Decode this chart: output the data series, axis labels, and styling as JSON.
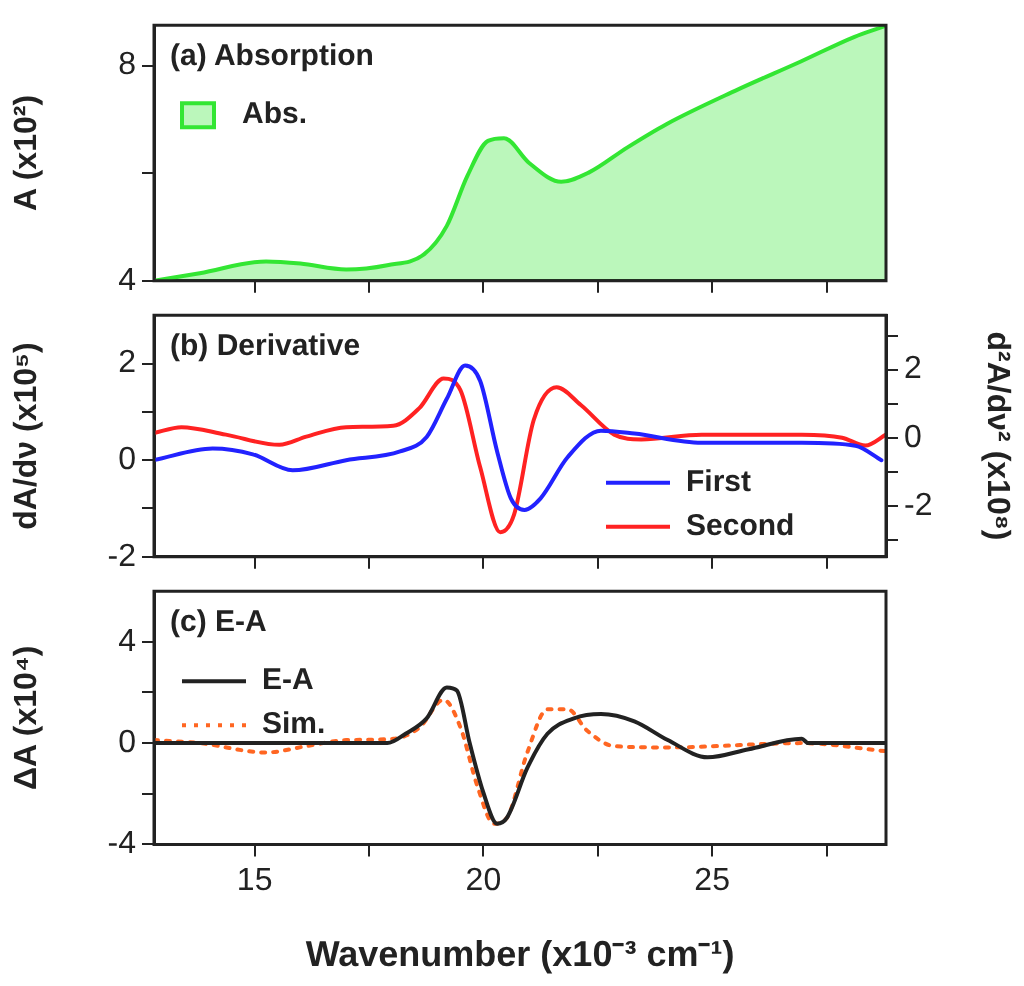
{
  "chart_data": [
    {
      "type": "area",
      "title": "(a) Absorption",
      "ylabel": "A (x10²)",
      "legend": "top left",
      "tick_labels": "y",
      "marker": "none",
      "xlim": [
        12.8,
        28.8
      ],
      "xticks": [
        15,
        {
          "value": 17.5,
          "label": null
        },
        20,
        {
          "value": 22.5,
          "label": null
        },
        25,
        {
          "value": 27.5,
          "label": null
        }
      ],
      "ylim": [
        4,
        8.75
      ],
      "yticks": [
        4,
        {
          "value": 6,
          "label": null
        },
        8
      ],
      "series": [
        {
          "name": "Abs.",
          "color": "#33e633",
          "x": [
            12.8,
            13.8,
            15.25,
            16.0,
            17.0,
            17.9,
            18.7,
            19.2,
            19.65,
            20.1,
            20.45,
            21.0,
            21.7,
            22.3,
            23.15,
            24.0,
            25.5,
            26.95,
            28.1,
            28.8
          ],
          "values": [
            4.0,
            4.14,
            4.36,
            4.32,
            4.21,
            4.29,
            4.49,
            5.02,
            5.95,
            6.6,
            6.65,
            6.19,
            5.84,
            6.01,
            6.48,
            6.91,
            7.53,
            8.08,
            8.53,
            8.74
          ]
        }
      ]
    },
    {
      "type": "line",
      "title": "(b) Derivative",
      "ylabel": "dA/dν (x10⁵)",
      "y2label": "d²A/dν² (x10⁸)",
      "legend": "bottom right",
      "tick_labels": "y",
      "marker": "none",
      "xlim": [
        12.8,
        28.8
      ],
      "xticks": [
        15,
        {
          "value": 17.5,
          "label": null
        },
        20,
        {
          "value": 22.5,
          "label": null
        },
        25,
        {
          "value": 27.5,
          "label": null
        }
      ],
      "ylim": [
        -2,
        3
      ],
      "yticks": [
        -2,
        {
          "value": -1,
          "label": null
        },
        0,
        {
          "value": 1,
          "label": null
        },
        2
      ],
      "y2lim": [
        -3.5,
        3.6
      ],
      "y2ticks": [
        {
          "value": -3,
          "label": null
        },
        -2,
        {
          "value": -1,
          "label": null
        },
        0,
        {
          "value": 1,
          "label": null
        },
        2,
        {
          "value": 3,
          "label": null
        }
      ],
      "series": [
        {
          "name": "First",
          "color": "#2222ff",
          "x": [
            12.8,
            14.08,
            14.96,
            15.83,
            17.0,
            18.18,
            18.76,
            19.2,
            19.6,
            19.93,
            20.3,
            20.6,
            20.9,
            21.25,
            21.84,
            22.57,
            23.3,
            24.77,
            26.96,
            28.13,
            28.7
          ],
          "values": [
            0,
            0.24,
            0.12,
            -0.21,
            0,
            0.18,
            0.48,
            1.27,
            1.96,
            1.64,
            0.18,
            -0.79,
            -1.03,
            -0.79,
            0.06,
            0.61,
            0.55,
            0.36,
            0.36,
            0.3,
            0
          ]
        },
        {
          "name": "Second",
          "color": "#ff2222",
          "axis": "y2",
          "x": [
            12.8,
            13.4,
            14.37,
            15.54,
            16.13,
            17.0,
            18.03,
            18.6,
            19.13,
            19.5,
            19.93,
            20.37,
            20.67,
            21.1,
            21.6,
            22.13,
            22.86,
            23.45,
            24.77,
            26.96,
            27.84,
            28.35,
            28.8
          ],
          "values": [
            0.14,
            0.31,
            0.09,
            -0.21,
            0.03,
            0.31,
            0.35,
            0.87,
            1.74,
            1.39,
            -0.87,
            -2.78,
            -2.26,
            0.52,
            1.48,
            0.96,
            0.09,
            -0.05,
            0.09,
            0.09,
            0,
            -0.23,
            0.09
          ]
        }
      ]
    },
    {
      "type": "line",
      "title": "(c) E-A",
      "xlabel": "Wavenumber (x10⁻³ cm⁻¹)",
      "ylabel": "ΔA (x10⁴)",
      "legend": "top left",
      "marker": "none",
      "xlim": [
        12.8,
        28.8
      ],
      "xticks": [
        15,
        {
          "value": 17.5,
          "label": null
        },
        20,
        {
          "value": 22.5,
          "label": null
        },
        25,
        {
          "value": 27.5,
          "label": null
        }
      ],
      "ylim": [
        -4,
        6
      ],
      "yticks": [
        -4,
        {
          "value": -2,
          "label": null
        },
        0,
        {
          "value": 2,
          "label": null
        },
        4
      ],
      "series": [
        {
          "name": "E-A",
          "color": "#222222",
          "line_style": "solid",
          "x": [
            12.8,
            15.25,
            17.9,
            18.3,
            18.76,
            19.2,
            19.42,
            19.7,
            20.0,
            20.3,
            20.52,
            20.96,
            21.4,
            21.98,
            22.57,
            23.3,
            24.03,
            24.9,
            25.8,
            26.96,
            27.1,
            28.8
          ],
          "values": [
            0,
            0,
            0,
            0.37,
            0.98,
            2.2,
            2.08,
            0,
            -1.96,
            -3.18,
            -2.93,
            -0.98,
            0.37,
            0.98,
            1.15,
            0.86,
            0.12,
            -0.56,
            -0.24,
            0.17,
            0,
            0
          ]
        },
        {
          "name": "Sim.",
          "color": "#ff6622",
          "line_style": "dotted",
          "x": [
            12.8,
            13.8,
            15.25,
            16.13,
            17.0,
            18.03,
            18.6,
            19.13,
            19.5,
            19.87,
            20.23,
            20.52,
            20.96,
            21.4,
            21.84,
            22.27,
            22.86,
            24.03,
            26.96,
            28.8
          ],
          "values": [
            0.12,
            0,
            -0.37,
            -0.12,
            0.12,
            0.17,
            0.61,
            1.71,
            0.61,
            -1.71,
            -3.18,
            -2.93,
            -0.37,
            1.34,
            1.34,
            0.49,
            -0.12,
            -0.17,
            0,
            -0.32
          ]
        }
      ]
    }
  ]
}
